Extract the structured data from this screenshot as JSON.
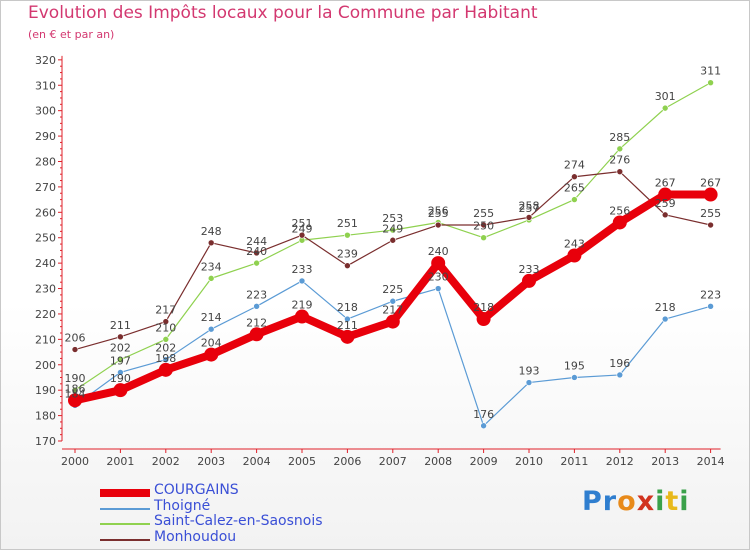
{
  "header": {
    "title": "Evolution des Impôts locaux pour la Commune par Habitant",
    "subtitle": "(en € et par an)"
  },
  "logo": {
    "letters": [
      {
        "ch": "P",
        "color": "#2f7ecf"
      },
      {
        "ch": "r",
        "color": "#2f7ecf"
      },
      {
        "ch": "o",
        "color": "#e88a1a"
      },
      {
        "ch": "x",
        "color": "#d1331f"
      },
      {
        "ch": "i",
        "color": "#3aa14a"
      },
      {
        "ch": "t",
        "color": "#e8b91a"
      },
      {
        "ch": "i",
        "color": "#3aa14a"
      }
    ]
  },
  "chart_data": {
    "type": "line",
    "title": "Evolution des Impôts locaux pour la Commune par Habitant",
    "subtitle": "(en € et par an)",
    "xlabel": "",
    "ylabel": "",
    "x": [
      2000,
      2001,
      2002,
      2003,
      2004,
      2005,
      2006,
      2007,
      2008,
      2009,
      2010,
      2011,
      2012,
      2013,
      2014
    ],
    "ylim": [
      170,
      320
    ],
    "yticks": [
      170,
      180,
      190,
      200,
      210,
      220,
      230,
      240,
      250,
      260,
      270,
      280,
      290,
      300,
      310,
      320
    ],
    "grid": false,
    "legend": "bottom-left",
    "series": [
      {
        "name": "COURGAINS",
        "color": "#e8000b",
        "values": [
          186,
          190,
          198,
          204,
          212,
          219,
          211,
          217,
          240,
          218,
          233,
          243,
          256,
          267,
          267
        ]
      },
      {
        "name": "Thoigné",
        "color": "#5b9bd5",
        "values": [
          184,
          197,
          202,
          214,
          223,
          233,
          218,
          225,
          230,
          176,
          193,
          195,
          196,
          218,
          223
        ]
      },
      {
        "name": "Saint-Calez-en-Saosnois",
        "color": "#8fd14f",
        "values": [
          190,
          202,
          210,
          234,
          240,
          249,
          251,
          253,
          256,
          250,
          257,
          265,
          285,
          301,
          311
        ]
      },
      {
        "name": "Monhoudou",
        "color": "#7a2e2e",
        "values": [
          206,
          211,
          217,
          248,
          244,
          251,
          239,
          249,
          255,
          255,
          258,
          274,
          276,
          259,
          255
        ]
      }
    ]
  }
}
